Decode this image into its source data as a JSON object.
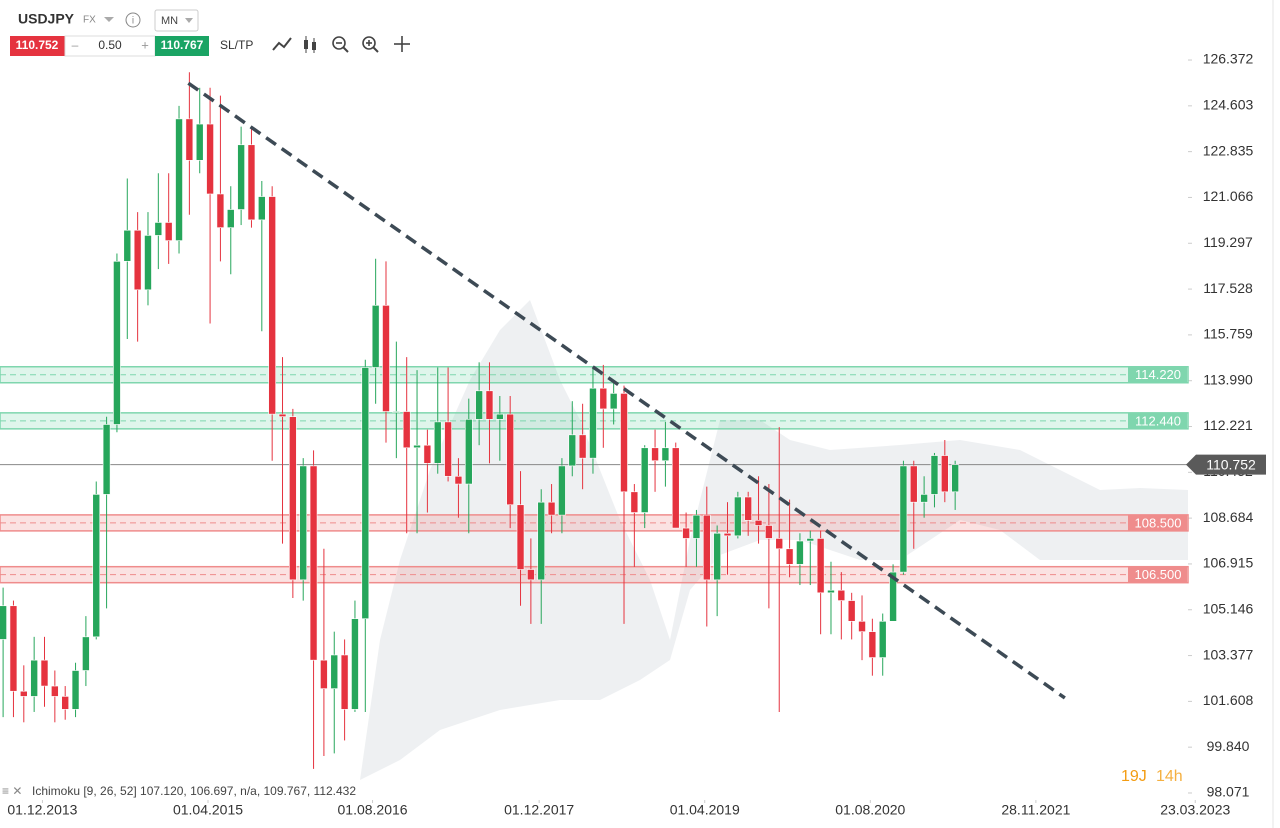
{
  "header": {
    "symbol": "USDJPY",
    "market": "FX",
    "timeframe": "MN",
    "bid": "110.752",
    "minus": "–",
    "lot": "0.50",
    "plus": "+",
    "ask": "110.767",
    "sltp": "SL/TP"
  },
  "chart_data": {
    "type": "candlestick",
    "open": [
      104.0,
      105.3,
      102.0,
      101.8,
      103.2,
      102.2,
      101.8,
      101.3,
      102.8,
      104.1,
      109.6,
      112.3,
      118.6,
      119.8,
      117.5,
      119.6,
      120.1,
      119.4,
      124.1,
      122.5,
      123.9,
      121.2,
      119.9,
      120.6,
      123.1,
      120.2,
      121.1,
      112.7,
      112.6,
      106.3,
      110.7,
      103.2,
      102.1,
      103.4,
      101.3,
      104.8,
      114.5,
      116.9,
      112.8,
      112.8,
      111.4,
      111.5,
      110.8,
      112.4,
      110.3,
      110.0,
      112.5,
      113.6,
      112.5,
      112.7,
      109.2,
      106.7,
      106.3,
      109.3,
      108.8,
      110.7,
      111.9,
      111.0,
      113.7,
      112.9,
      113.5,
      109.7,
      108.9,
      111.4,
      110.9,
      111.4,
      108.3,
      107.9,
      108.8,
      106.3,
      108.1,
      108.0,
      109.5,
      108.6,
      108.4,
      107.9,
      107.5,
      106.9,
      107.8,
      107.9,
      105.8,
      105.9,
      105.5,
      104.7,
      104.3,
      103.3,
      104.7,
      106.6,
      110.7,
      109.3,
      109.6,
      111.1,
      109.7
    ],
    "high": [
      106.0,
      105.5,
      103.0,
      104.1,
      104.1,
      102.8,
      102.2,
      103.1,
      104.9,
      110.1,
      112.6,
      118.9,
      121.8,
      120.5,
      120.5,
      122.0,
      122.0,
      124.6,
      125.9,
      125.3,
      125.3,
      125.0,
      121.5,
      123.8,
      123.8,
      121.7,
      121.5,
      114.9,
      112.9,
      111.0,
      111.3,
      107.5,
      104.3,
      104.0,
      105.5,
      114.8,
      118.7,
      118.6,
      115.5,
      114.9,
      114.4,
      112.1,
      114.5,
      114.5,
      111.0,
      113.3,
      114.7,
      114.7,
      113.4,
      113.4,
      110.5,
      107.9,
      109.8,
      110.0,
      111.0,
      113.2,
      113.1,
      114.5,
      114.6,
      114.0,
      113.8,
      110.0,
      111.5,
      112.1,
      112.4,
      111.6,
      108.9,
      109.0,
      109.9,
      108.4,
      109.3,
      109.7,
      109.7,
      110.3,
      110.0,
      112.2,
      109.4,
      108.1,
      108.2,
      108.2,
      107.0,
      106.6,
      105.8,
      105.7,
      104.8,
      105.0,
      106.9,
      110.9,
      110.9,
      110.3,
      111.2,
      111.7,
      110.9
    ],
    "low": [
      101.0,
      101.0,
      100.8,
      101.2,
      101.4,
      100.8,
      100.9,
      101.0,
      102.2,
      104.0,
      105.2,
      112.0,
      115.6,
      115.5,
      116.9,
      118.3,
      118.5,
      118.9,
      120.4,
      122.0,
      116.2,
      118.6,
      118.1,
      120.0,
      119.9,
      115.9,
      110.9,
      107.7,
      105.6,
      105.5,
      99.0,
      99.5,
      99.6,
      100.1,
      101.2,
      101.2,
      113.1,
      111.6,
      111.0,
      108.1,
      108.1,
      108.9,
      110.4,
      110.1,
      108.7,
      108.1,
      111.5,
      110.8,
      110.9,
      108.3,
      105.3,
      104.6,
      104.6,
      108.1,
      108.1,
      110.3,
      109.8,
      110.4,
      111.4,
      112.3,
      104.6,
      106.8,
      108.3,
      109.7,
      109.9,
      108.3,
      106.8,
      106.8,
      104.5,
      104.9,
      106.5,
      107.9,
      108.0,
      107.7,
      105.2,
      101.2,
      106.4,
      106.1,
      106.1,
      104.2,
      104.2,
      104.0,
      104.0,
      103.2,
      102.6,
      102.6,
      104.7,
      106.5,
      107.5,
      108.7,
      109.1,
      109.3,
      109.0
    ],
    "close": [
      105.3,
      102.0,
      101.8,
      103.2,
      102.2,
      101.8,
      101.3,
      102.8,
      104.1,
      109.6,
      112.3,
      118.6,
      119.8,
      117.5,
      119.6,
      120.1,
      119.4,
      124.1,
      122.5,
      123.9,
      121.2,
      119.9,
      120.6,
      123.1,
      120.2,
      121.1,
      112.7,
      112.6,
      106.3,
      110.7,
      103.2,
      102.1,
      103.4,
      101.3,
      104.8,
      114.5,
      116.9,
      112.8,
      112.8,
      111.4,
      111.5,
      110.8,
      112.4,
      110.3,
      110.0,
      112.5,
      113.6,
      112.5,
      112.7,
      109.2,
      106.7,
      106.3,
      109.3,
      108.8,
      110.7,
      111.9,
      111.0,
      113.7,
      112.9,
      113.5,
      109.7,
      108.9,
      111.4,
      110.9,
      111.4,
      108.3,
      107.9,
      108.8,
      106.3,
      108.1,
      108.0,
      109.5,
      108.6,
      108.4,
      107.9,
      107.5,
      106.9,
      107.8,
      107.9,
      105.8,
      105.9,
      105.5,
      104.7,
      104.3,
      103.3,
      104.7,
      106.6,
      110.7,
      109.3,
      109.6,
      111.1,
      109.7,
      110.75
    ],
    "up_color": "#26a65b",
    "down_color": "#e5333f",
    "xlim": [
      -0.3,
      114.5
    ],
    "xticks": [
      {
        "value": 3.8,
        "label": "01.12.2013"
      },
      {
        "value": 19.8,
        "label": "01.04.2015"
      },
      {
        "value": 35.7,
        "label": "01.08.2016"
      },
      {
        "value": 51.8,
        "label": "01.12.2017"
      },
      {
        "value": 67.8,
        "label": "01.04.2019"
      },
      {
        "value": 83.8,
        "label": "01.08.2020"
      },
      {
        "value": 99.8,
        "label": "28.11.2021"
      },
      {
        "value": 115.2,
        "label": "23.03.2023"
      }
    ],
    "ylim": [
      97.8,
      128.69
    ],
    "yticks": [
      126.372,
      124.603,
      122.835,
      121.066,
      119.297,
      117.528,
      115.759,
      {
        "value": 113.99,
        "label": "113.990"
      },
      112.221,
      110.452,
      108.684,
      106.915,
      105.146,
      103.377,
      101.608,
      {
        "value": 99.84,
        "label": "99.840"
      },
      98.071
    ],
    "levels": [
      {
        "value": 114.22,
        "label": "114.220",
        "color": "#7fd6ae"
      },
      {
        "value": 112.44,
        "label": "112.440",
        "color": "#7fd6ae"
      },
      {
        "value": 108.5,
        "label": "108.500",
        "color": "#ef8c8c"
      },
      {
        "value": 106.5,
        "label": "106.500",
        "color": "#ef8c8c"
      }
    ],
    "last_price": 110.752,
    "trendline": {
      "x": [
        17.9,
        102.6
      ],
      "y": [
        125.48,
        101.74
      ],
      "color": "#3d4a55"
    },
    "indicator": "Ichimoku [9, 26, 52] 107.120, 106.697, n/a, 109.767, 112.432",
    "timer_days": "19J",
    "timer_hours": "14h"
  }
}
